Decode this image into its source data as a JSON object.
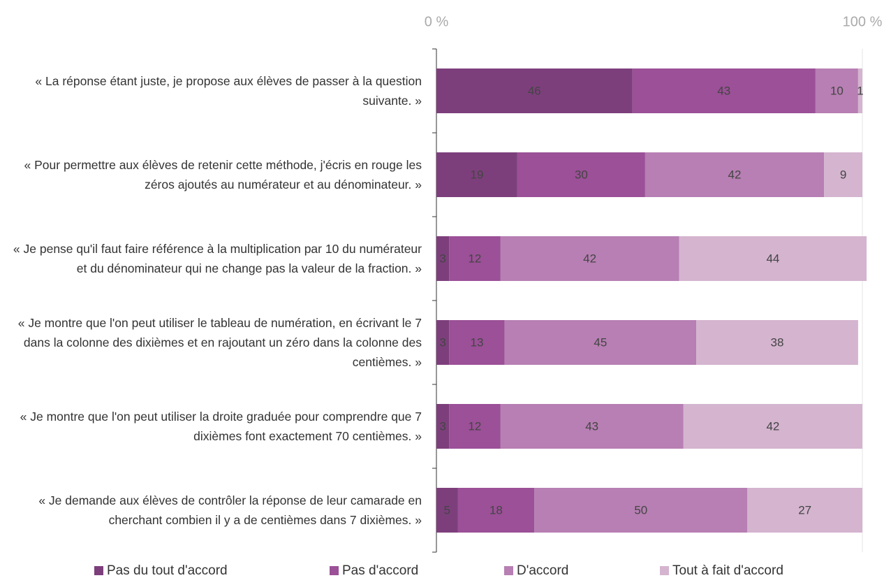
{
  "chart_data": {
    "type": "stacked-bar-horizontal",
    "categories": [
      "« La réponse étant juste, je propose aux élèves de passer à la question suivante. »",
      "« Pour permettre aux élèves de retenir cette méthode, j'écris en rouge les zéros ajoutés au numérateur et au dénominateur. »",
      "« Je pense qu'il faut faire référence à la multiplication par 10 du numérateur et du dénominateur qui ne change pas la valeur de la fraction. »",
      "« Je montre que l'on peut utiliser le tableau de numération, en écrivant le 7 dans la colonne des dixièmes et en rajoutant un zéro dans la colonne des centièmes. »",
      "« Je montre que l'on peut utiliser la droite graduée pour comprendre que 7 dixièmes font exactement 70 centièmes. »",
      "« Je demande aux élèves de contrôler la réponse de leur camarade en cherchant combien il y a de centièmes dans 7 dixièmes. »"
    ],
    "series": [
      {
        "name": "Pas du tout d'accord",
        "color": "#7d3f7c",
        "values": [
          46,
          19,
          3,
          3,
          3,
          5
        ]
      },
      {
        "name": "Pas d'accord",
        "color": "#9b5097",
        "values": [
          43,
          30,
          12,
          13,
          12,
          18
        ]
      },
      {
        "name": "D'accord",
        "color": "#b77fb3",
        "values": [
          10,
          42,
          42,
          45,
          43,
          50
        ]
      },
      {
        "name": "Tout à fait d'accord",
        "color": "#d4b4cf",
        "values": [
          1,
          9,
          44,
          38,
          42,
          27
        ]
      }
    ],
    "xlim": [
      0,
      100
    ],
    "xticks": [
      {
        "value": 0,
        "label": "0 %"
      },
      {
        "value": 100,
        "label": "100 %"
      }
    ],
    "legend": "bottom"
  }
}
